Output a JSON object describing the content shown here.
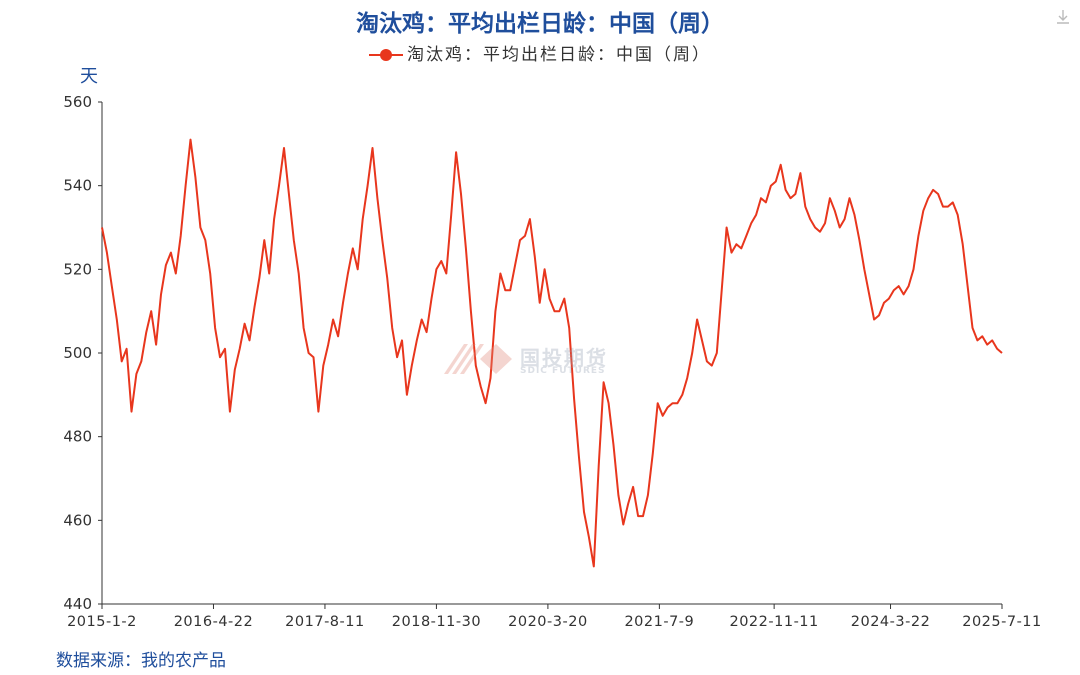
{
  "title": "淘汰鸡：平均出栏日龄：中国（周）",
  "legend_label": "淘汰鸡：平均出栏日龄：中国（周）",
  "unit": "天",
  "source": "数据来源：我的农产品",
  "watermark": {
    "name": "国投期货",
    "sub": "SDIC FUTURES"
  },
  "icons": {
    "download": "download-icon"
  },
  "colors": {
    "series": "#e8361d",
    "title": "#1f4e9c",
    "axis": "#333333"
  },
  "chart_data": {
    "type": "line",
    "title": "淘汰鸡：平均出栏日龄：中国（周）",
    "xlabel": "",
    "ylabel": "天",
    "ylim": [
      440,
      560
    ],
    "yticks": [
      440,
      460,
      480,
      500,
      520,
      540,
      560
    ],
    "xlim": [
      "2015-01-02",
      "2025-07-11"
    ],
    "xticks": [
      "2015-1-2",
      "2016-4-22",
      "2017-8-11",
      "2018-11-30",
      "2020-3-20",
      "2021-7-9",
      "2022-11-11",
      "2024-3-22",
      "2025-7-11"
    ],
    "grid": false,
    "legend": "top-center",
    "series": [
      {
        "name": "淘汰鸡：平均出栏日龄：中国（周）",
        "points": [
          [
            "2015-01-02",
            530
          ],
          [
            "2015-01-23",
            524
          ],
          [
            "2015-02-13",
            516
          ],
          [
            "2015-03-06",
            508
          ],
          [
            "2015-03-27",
            498
          ],
          [
            "2015-04-17",
            501
          ],
          [
            "2015-05-08",
            486
          ],
          [
            "2015-05-29",
            495
          ],
          [
            "2015-06-19",
            498
          ],
          [
            "2015-07-10",
            505
          ],
          [
            "2015-07-31",
            510
          ],
          [
            "2015-08-21",
            502
          ],
          [
            "2015-09-11",
            514
          ],
          [
            "2015-10-02",
            521
          ],
          [
            "2015-10-23",
            524
          ],
          [
            "2015-11-13",
            519
          ],
          [
            "2015-12-04",
            528
          ],
          [
            "2015-12-25",
            540
          ],
          [
            "2016-01-15",
            551
          ],
          [
            "2016-02-05",
            542
          ],
          [
            "2016-02-26",
            530
          ],
          [
            "2016-03-18",
            527
          ],
          [
            "2016-04-08",
            519
          ],
          [
            "2016-04-29",
            506
          ],
          [
            "2016-05-20",
            499
          ],
          [
            "2016-06-10",
            501
          ],
          [
            "2016-07-01",
            486
          ],
          [
            "2016-07-22",
            496
          ],
          [
            "2016-08-12",
            501
          ],
          [
            "2016-09-02",
            507
          ],
          [
            "2016-09-23",
            503
          ],
          [
            "2016-10-14",
            511
          ],
          [
            "2016-11-04",
            518
          ],
          [
            "2016-11-25",
            527
          ],
          [
            "2016-12-16",
            519
          ],
          [
            "2017-01-06",
            532
          ],
          [
            "2017-01-27",
            540
          ],
          [
            "2017-02-17",
            549
          ],
          [
            "2017-03-10",
            538
          ],
          [
            "2017-03-31",
            527
          ],
          [
            "2017-04-21",
            519
          ],
          [
            "2017-05-12",
            506
          ],
          [
            "2017-06-02",
            500
          ],
          [
            "2017-06-23",
            499
          ],
          [
            "2017-07-14",
            486
          ],
          [
            "2017-08-04",
            497
          ],
          [
            "2017-08-25",
            502
          ],
          [
            "2017-09-15",
            508
          ],
          [
            "2017-10-06",
            504
          ],
          [
            "2017-10-27",
            512
          ],
          [
            "2017-11-17",
            519
          ],
          [
            "2017-12-08",
            525
          ],
          [
            "2017-12-29",
            520
          ],
          [
            "2018-01-19",
            532
          ],
          [
            "2018-02-09",
            540
          ],
          [
            "2018-03-02",
            549
          ],
          [
            "2018-03-23",
            537
          ],
          [
            "2018-04-13",
            527
          ],
          [
            "2018-05-04",
            518
          ],
          [
            "2018-05-25",
            506
          ],
          [
            "2018-06-15",
            499
          ],
          [
            "2018-07-06",
            503
          ],
          [
            "2018-07-27",
            490
          ],
          [
            "2018-08-17",
            497
          ],
          [
            "2018-09-07",
            503
          ],
          [
            "2018-09-28",
            508
          ],
          [
            "2018-10-19",
            505
          ],
          [
            "2018-11-09",
            513
          ],
          [
            "2018-11-30",
            520
          ],
          [
            "2018-12-21",
            522
          ],
          [
            "2019-01-11",
            519
          ],
          [
            "2019-02-01",
            533
          ],
          [
            "2019-02-22",
            548
          ],
          [
            "2019-03-15",
            538
          ],
          [
            "2019-04-05",
            525
          ],
          [
            "2019-04-26",
            510
          ],
          [
            "2019-05-17",
            497
          ],
          [
            "2019-06-07",
            492
          ],
          [
            "2019-06-28",
            488
          ],
          [
            "2019-07-19",
            494
          ],
          [
            "2019-08-09",
            510
          ],
          [
            "2019-08-30",
            519
          ],
          [
            "2019-09-20",
            515
          ],
          [
            "2019-10-11",
            515
          ],
          [
            "2019-11-01",
            521
          ],
          [
            "2019-11-22",
            527
          ],
          [
            "2019-12-13",
            528
          ],
          [
            "2020-01-03",
            532
          ],
          [
            "2020-01-24",
            523
          ],
          [
            "2020-02-14",
            512
          ],
          [
            "2020-03-06",
            520
          ],
          [
            "2020-03-27",
            513
          ],
          [
            "2020-04-17",
            510
          ],
          [
            "2020-05-08",
            510
          ],
          [
            "2020-05-29",
            513
          ],
          [
            "2020-06-19",
            506
          ],
          [
            "2020-07-10",
            489
          ],
          [
            "2020-07-31",
            475
          ],
          [
            "2020-08-21",
            462
          ],
          [
            "2020-09-11",
            456
          ],
          [
            "2020-10-02",
            449
          ],
          [
            "2020-10-23",
            473
          ],
          [
            "2020-11-13",
            493
          ],
          [
            "2020-12-04",
            488
          ],
          [
            "2020-12-25",
            478
          ],
          [
            "2021-01-15",
            466
          ],
          [
            "2021-02-05",
            459
          ],
          [
            "2021-02-26",
            464
          ],
          [
            "2021-03-19",
            468
          ],
          [
            "2021-04-09",
            461
          ],
          [
            "2021-04-30",
            461
          ],
          [
            "2021-05-21",
            466
          ],
          [
            "2021-06-11",
            476
          ],
          [
            "2021-07-02",
            488
          ],
          [
            "2021-07-23",
            485
          ],
          [
            "2021-08-13",
            487
          ],
          [
            "2021-09-03",
            488
          ],
          [
            "2021-09-24",
            488
          ],
          [
            "2021-10-15",
            490
          ],
          [
            "2021-11-05",
            494
          ],
          [
            "2021-11-26",
            500
          ],
          [
            "2021-12-17",
            508
          ],
          [
            "2022-01-07",
            503
          ],
          [
            "2022-01-28",
            498
          ],
          [
            "2022-02-18",
            497
          ],
          [
            "2022-03-11",
            500
          ],
          [
            "2022-04-01",
            515
          ],
          [
            "2022-04-22",
            530
          ],
          [
            "2022-05-13",
            524
          ],
          [
            "2022-06-03",
            526
          ],
          [
            "2022-06-24",
            525
          ],
          [
            "2022-07-15",
            528
          ],
          [
            "2022-08-05",
            531
          ],
          [
            "2022-08-26",
            533
          ],
          [
            "2022-09-16",
            537
          ],
          [
            "2022-10-07",
            536
          ],
          [
            "2022-10-28",
            540
          ],
          [
            "2022-11-18",
            541
          ],
          [
            "2022-12-09",
            545
          ],
          [
            "2022-12-30",
            539
          ],
          [
            "2023-01-20",
            537
          ],
          [
            "2023-02-10",
            538
          ],
          [
            "2023-03-03",
            543
          ],
          [
            "2023-03-24",
            535
          ],
          [
            "2023-04-14",
            532
          ],
          [
            "2023-05-05",
            530
          ],
          [
            "2023-05-26",
            529
          ],
          [
            "2023-06-16",
            531
          ],
          [
            "2023-07-07",
            537
          ],
          [
            "2023-07-28",
            534
          ],
          [
            "2023-08-18",
            530
          ],
          [
            "2023-09-08",
            532
          ],
          [
            "2023-09-29",
            537
          ],
          [
            "2023-10-20",
            533
          ],
          [
            "2023-11-10",
            527
          ],
          [
            "2023-12-01",
            520
          ],
          [
            "2023-12-22",
            514
          ],
          [
            "2024-01-12",
            508
          ],
          [
            "2024-02-02",
            509
          ],
          [
            "2024-02-23",
            512
          ],
          [
            "2024-03-15",
            513
          ],
          [
            "2024-04-05",
            515
          ],
          [
            "2024-04-26",
            516
          ],
          [
            "2024-05-17",
            514
          ],
          [
            "2024-06-07",
            516
          ],
          [
            "2024-06-28",
            520
          ],
          [
            "2024-07-19",
            528
          ],
          [
            "2024-08-09",
            534
          ],
          [
            "2024-08-30",
            537
          ],
          [
            "2024-09-20",
            539
          ],
          [
            "2024-10-11",
            538
          ],
          [
            "2024-11-01",
            535
          ],
          [
            "2024-11-22",
            535
          ],
          [
            "2024-12-13",
            536
          ],
          [
            "2025-01-03",
            533
          ],
          [
            "2025-01-24",
            526
          ],
          [
            "2025-02-14",
            516
          ],
          [
            "2025-03-07",
            506
          ],
          [
            "2025-03-28",
            503
          ],
          [
            "2025-04-18",
            504
          ],
          [
            "2025-05-09",
            502
          ],
          [
            "2025-05-30",
            503
          ],
          [
            "2025-06-20",
            501
          ],
          [
            "2025-07-11",
            500
          ]
        ]
      }
    ]
  }
}
